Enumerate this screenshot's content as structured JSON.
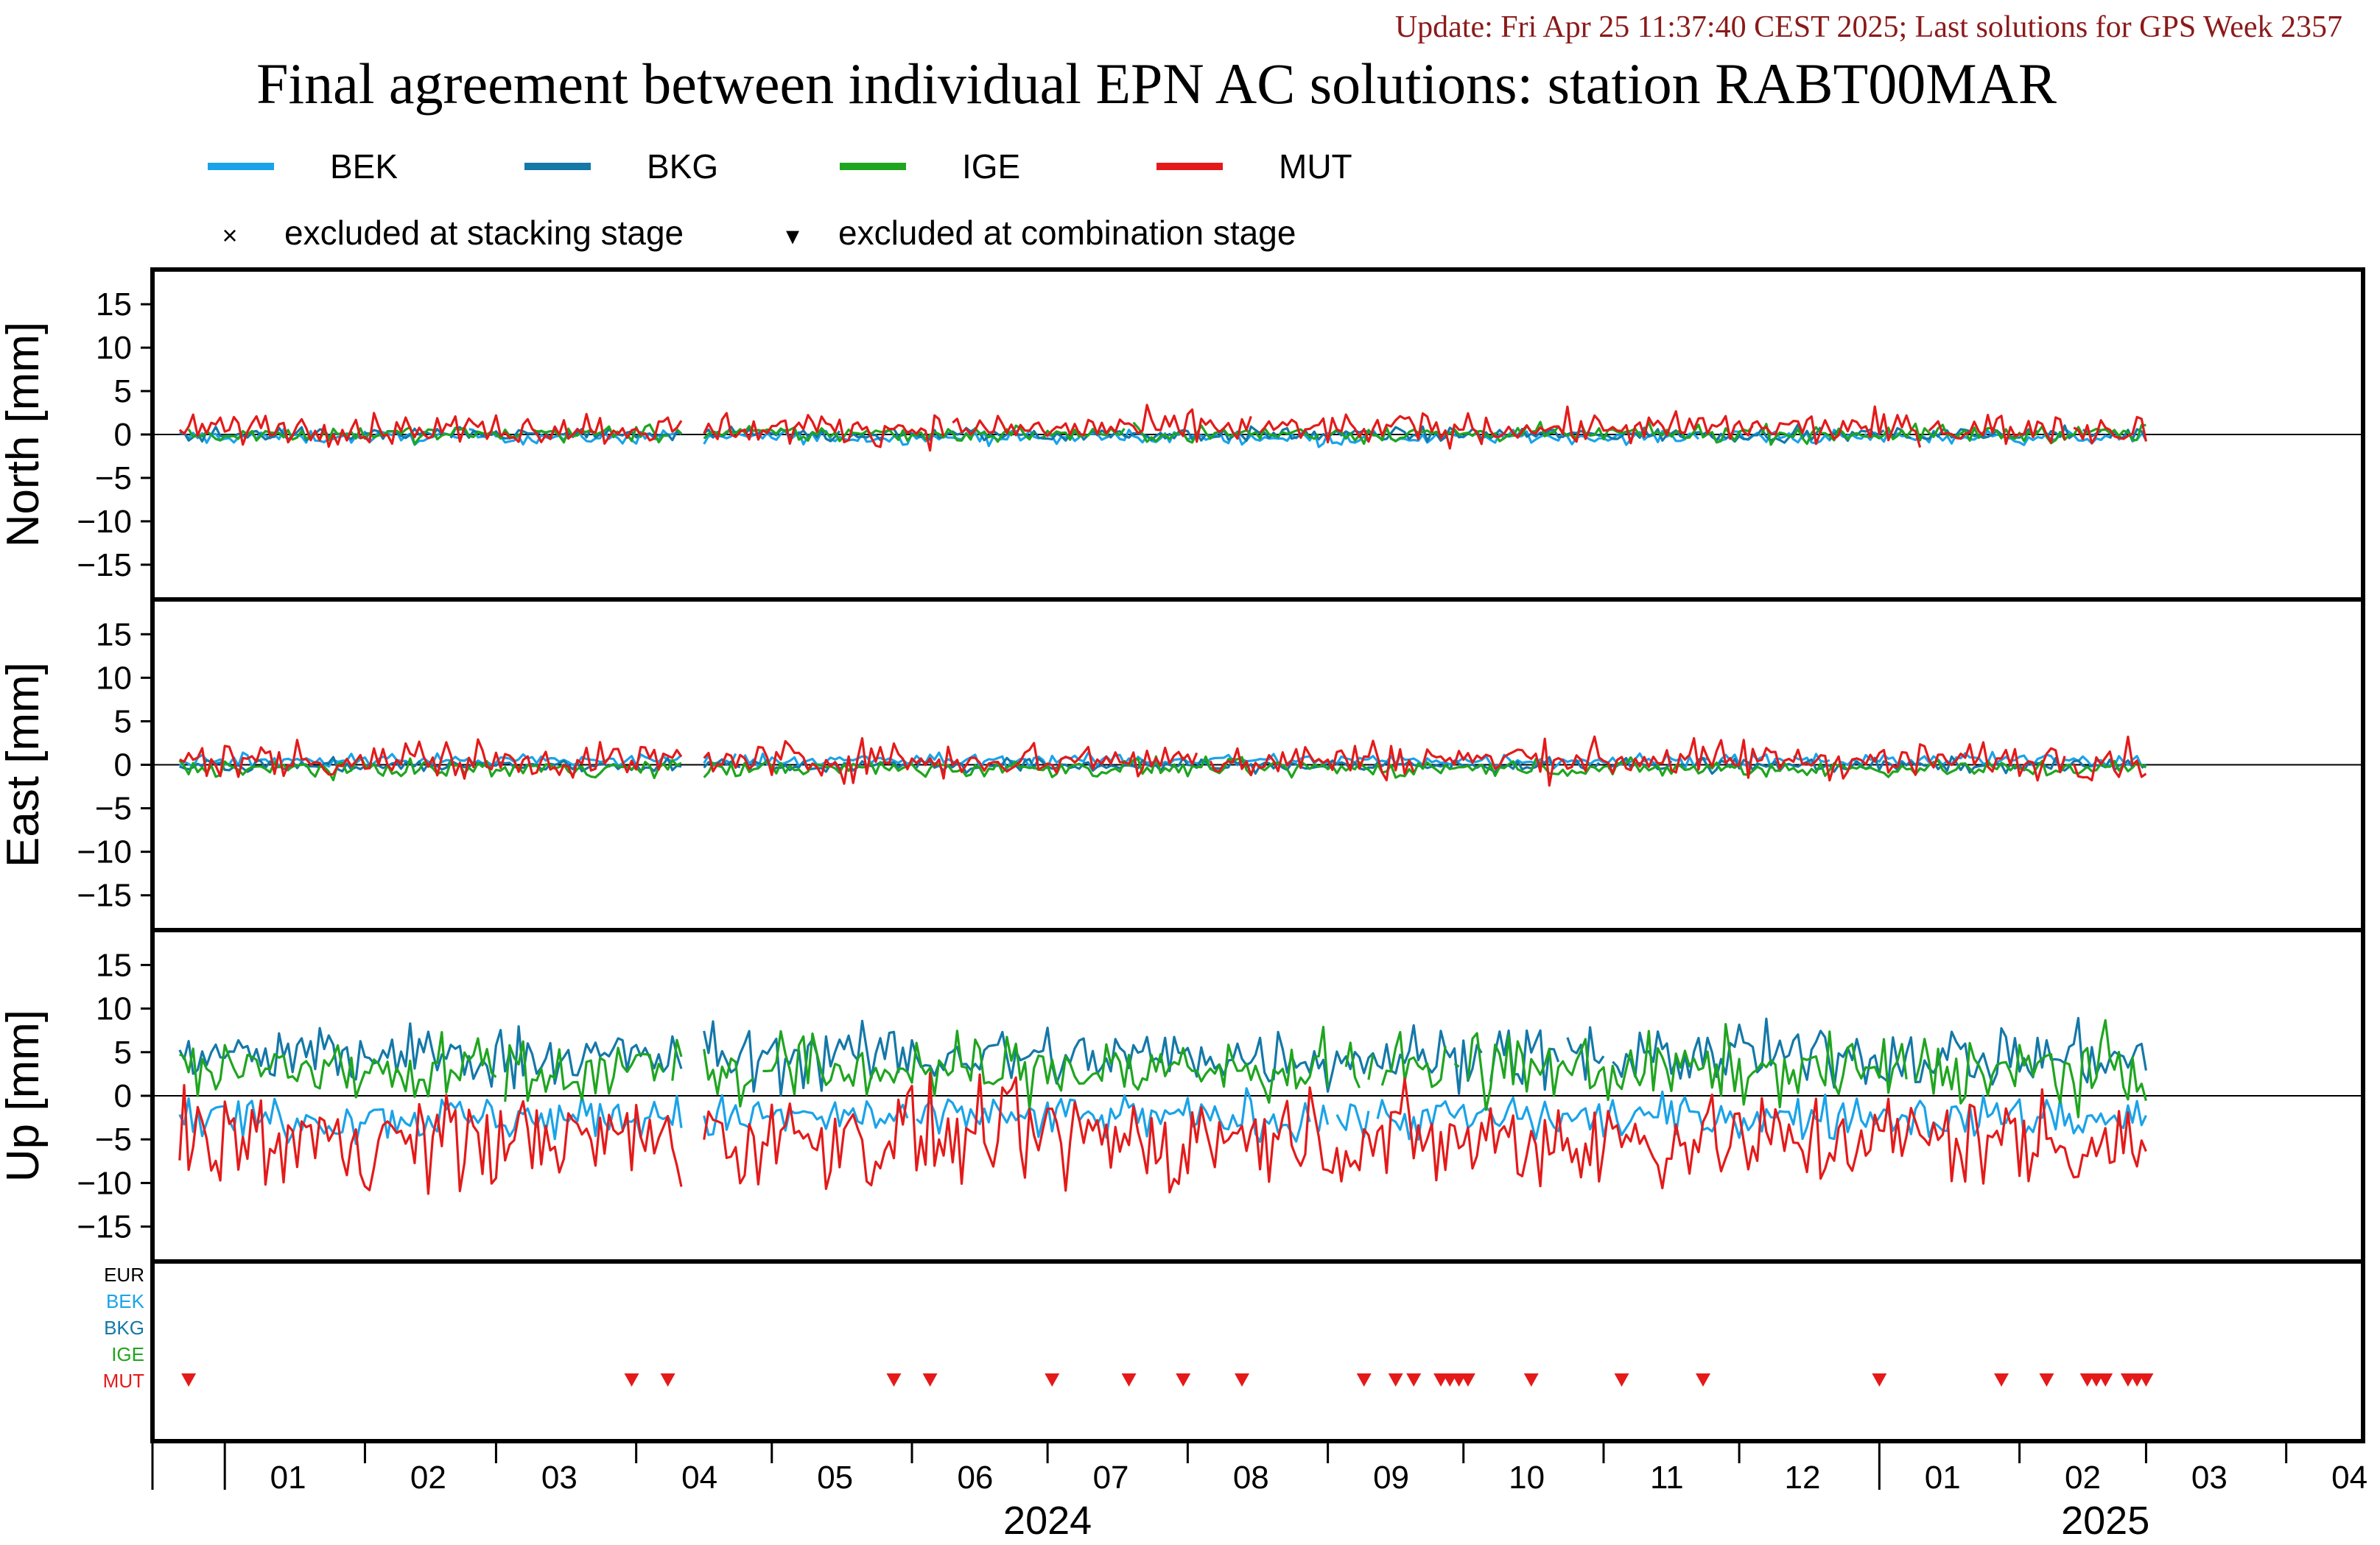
{
  "update_text": "Update: Fri Apr 25 11:37:40 CEST 2025; Last solutions for GPS Week 2357",
  "title": "Final agreement between individual EPN AC solutions: station RABT00MAR",
  "legend": {
    "series": [
      {
        "name": "BEK",
        "color": "#1aa3e8"
      },
      {
        "name": "BKG",
        "color": "#1478a8"
      },
      {
        "name": "IGE",
        "color": "#1fa51f"
      },
      {
        "name": "MUT",
        "color": "#e41a1a"
      }
    ],
    "excluded_stacking": "excluded at stacking stage",
    "excluded_combination": "excluded at combination stage",
    "stacking_symbol": "×",
    "combination_symbol": "▾"
  },
  "chart_data": {
    "type": "line",
    "x_unit": "date",
    "x_range": [
      "2023-12-16",
      "2025-04-18"
    ],
    "x_tick_labels": [
      "01",
      "02",
      "03",
      "04",
      "05",
      "06",
      "07",
      "08",
      "09",
      "10",
      "11",
      "12",
      "01",
      "02",
      "03",
      "04"
    ],
    "years": [
      "2024",
      "2025"
    ],
    "panels": [
      {
        "ylabel": "North [mm]",
        "ylim": [
          -19,
          19
        ],
        "yticks": [
          15,
          10,
          5,
          0,
          -5,
          -10,
          -15
        ],
        "series": [
          {
            "name": "BEK",
            "mean": -0.3,
            "spread": 0.4,
            "color": "#1aa3e8"
          },
          {
            "name": "BKG",
            "mean": 0.0,
            "spread": 0.4,
            "color": "#1478a8"
          },
          {
            "name": "IGE",
            "mean": 0.1,
            "spread": 0.5,
            "color": "#1fa51f"
          },
          {
            "name": "MUT",
            "mean": 0.7,
            "spread": 0.9,
            "color": "#e41a1a"
          }
        ]
      },
      {
        "ylabel": "East [mm]",
        "ylim": [
          -19,
          19
        ],
        "yticks": [
          15,
          10,
          5,
          0,
          -5,
          -10,
          -15
        ],
        "series": [
          {
            "name": "BEK",
            "mean": 0.5,
            "spread": 0.4,
            "color": "#1aa3e8"
          },
          {
            "name": "BKG",
            "mean": -0.1,
            "spread": 0.4,
            "color": "#1478a8"
          },
          {
            "name": "IGE",
            "mean": -0.4,
            "spread": 0.5,
            "color": "#1fa51f"
          },
          {
            "name": "MUT",
            "mean": 0.6,
            "spread": 1.1,
            "color": "#e41a1a"
          }
        ]
      },
      {
        "ylabel": "Up [mm]",
        "ylim": [
          -19,
          19
        ],
        "yticks": [
          15,
          10,
          5,
          0,
          -5,
          -10,
          -15
        ],
        "series": [
          {
            "name": "BEK",
            "mean": -2.5,
            "spread": 1.3,
            "color": "#1aa3e8"
          },
          {
            "name": "BKG",
            "mean": 4.5,
            "spread": 1.8,
            "color": "#1478a8"
          },
          {
            "name": "IGE",
            "mean": 3.0,
            "spread": 2.0,
            "color": "#1fa51f"
          },
          {
            "name": "MUT",
            "mean": -5.0,
            "spread": 2.8,
            "color": "#e41a1a"
          }
        ]
      }
    ],
    "exclusion_panel": {
      "rows": [
        {
          "name": "EUR",
          "color": "#000000"
        },
        {
          "name": "BEK",
          "color": "#1aa3e8"
        },
        {
          "name": "BKG",
          "color": "#1478a8"
        },
        {
          "name": "IGE",
          "color": "#1fa51f"
        },
        {
          "name": "MUT",
          "color": "#e41a1a"
        }
      ],
      "combination_exclusions": {
        "MUT": [
          "2023-12-24",
          "2024-03-31",
          "2024-04-08",
          "2024-05-28",
          "2024-06-05",
          "2024-07-02",
          "2024-07-19",
          "2024-07-31",
          "2024-08-13",
          "2024-09-09",
          "2024-09-16",
          "2024-09-20",
          "2024-09-26",
          "2024-09-28",
          "2024-09-30",
          "2024-10-02",
          "2024-10-16",
          "2024-11-05",
          "2024-11-23",
          "2025-01-01",
          "2025-01-28",
          "2025-02-07",
          "2025-02-16",
          "2025-02-18",
          "2025-02-20",
          "2025-02-25",
          "2025-02-27",
          "2025-03-01"
        ]
      }
    }
  }
}
